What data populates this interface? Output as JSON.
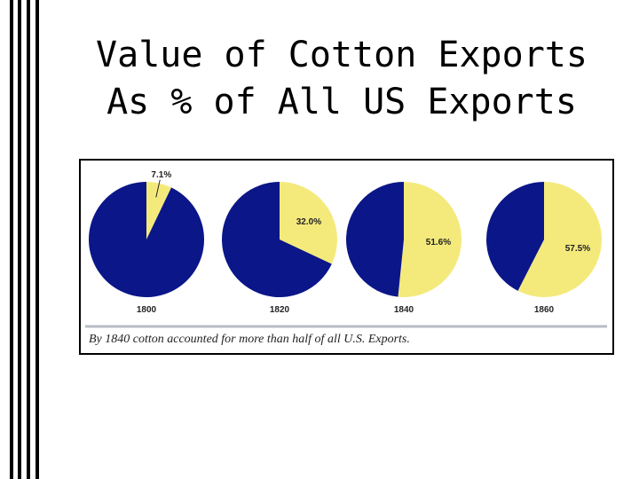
{
  "slide": {
    "title_lines": [
      "Value of Cotton Exports",
      "As % of All US Exports"
    ],
    "caption": "By 1840 cotton accounted for more than half of all U.S. Exports."
  },
  "chart_data": [
    {
      "type": "pie",
      "label": "1800",
      "values": [
        7.1,
        92.9
      ],
      "value_labels": [
        "7.1%",
        null
      ],
      "colors": [
        "#f4ea7c",
        "#0b1688"
      ]
    },
    {
      "type": "pie",
      "label": "1820",
      "values": [
        32.0,
        68.0
      ],
      "value_labels": [
        "32.0%",
        null
      ],
      "colors": [
        "#f4ea7c",
        "#0b1688"
      ]
    },
    {
      "type": "pie",
      "label": "1840",
      "values": [
        51.6,
        48.4
      ],
      "value_labels": [
        "51.6%",
        null
      ],
      "colors": [
        "#f4ea7c",
        "#0b1688"
      ]
    },
    {
      "type": "pie",
      "label": "1860",
      "values": [
        57.5,
        42.5
      ],
      "value_labels": [
        "57.5%",
        null
      ],
      "colors": [
        "#f4ea7c",
        "#0b1688"
      ]
    }
  ]
}
